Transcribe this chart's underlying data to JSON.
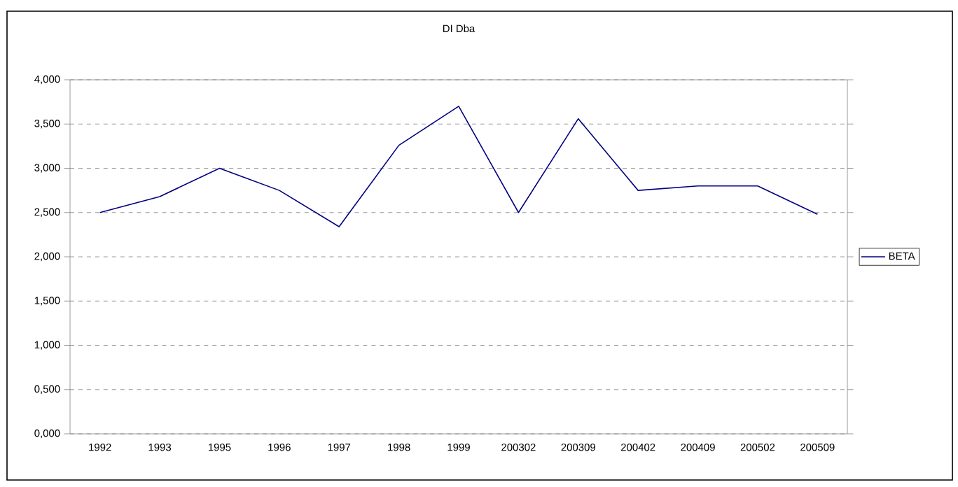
{
  "chart_data": {
    "type": "line",
    "title": "DI Dba",
    "categories": [
      "1992",
      "1993",
      "1995",
      "1996",
      "1997",
      "1998",
      "1999",
      "200302",
      "200309",
      "200402",
      "200409",
      "200502",
      "200509"
    ],
    "series": [
      {
        "name": "BETA",
        "color": "#000080",
        "values": [
          2.5,
          2.68,
          3.0,
          2.75,
          2.34,
          3.26,
          3.7,
          2.5,
          3.56,
          2.75,
          2.8,
          2.8,
          2.48
        ]
      }
    ],
    "ylim": [
      0,
      4
    ],
    "yticks": [
      {
        "value": 0,
        "label": "0,000"
      },
      {
        "value": 0.5,
        "label": "0,500"
      },
      {
        "value": 1,
        "label": "1,000"
      },
      {
        "value": 1.5,
        "label": "1,500"
      },
      {
        "value": 2,
        "label": "2,000"
      },
      {
        "value": 2.5,
        "label": "2,500"
      },
      {
        "value": 3,
        "label": "3,000"
      },
      {
        "value": 3.5,
        "label": "3,500"
      },
      {
        "value": 4,
        "label": "4,000"
      }
    ],
    "grid": "y",
    "legend": "right",
    "marker": "none",
    "line_style": "solid"
  }
}
